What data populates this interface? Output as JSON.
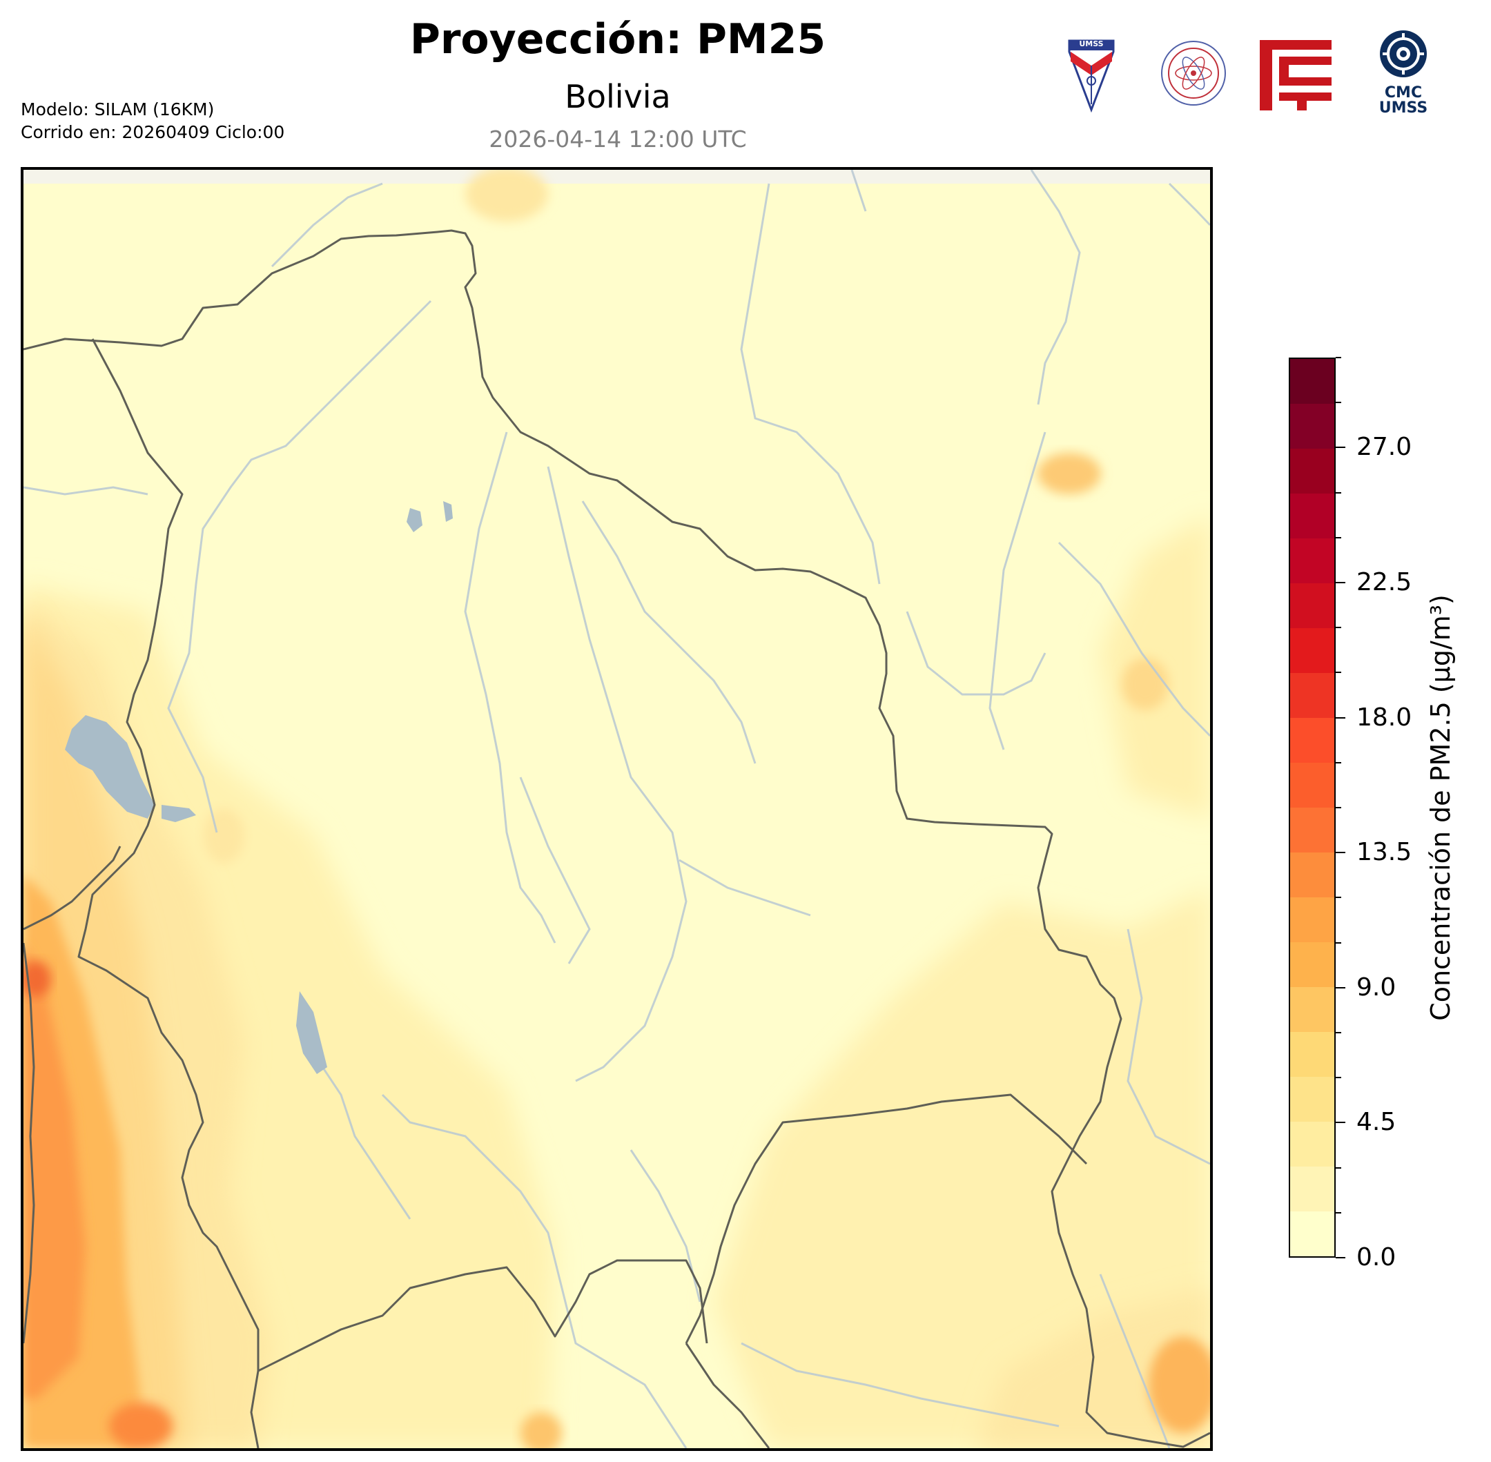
{
  "header": {
    "title": "Proyección: PM25",
    "subtitle": "Bolivia",
    "datetime": "2026-04-14 12:00 UTC"
  },
  "meta": {
    "model": "Modelo: SILAM (16KM)",
    "run": "Corrido en: 20260409 Ciclo:00"
  },
  "logos": [
    {
      "name": "umss-shield-logo",
      "text": "UMSS"
    },
    {
      "name": "departamento-fisica-seal-logo",
      "text": "DEPARTAMENTO DE FÍSICA"
    },
    {
      "name": "red-glyph-logo",
      "text": ""
    },
    {
      "name": "cmc-umss-logo",
      "text": "CMC UMSS"
    }
  ],
  "colorbar": {
    "label": "Concentración de PM2.5 (µg/m³)",
    "min": 0,
    "max": 30,
    "step": 1.5,
    "ticks": [
      {
        "value": 0,
        "label": "0.0"
      },
      {
        "value": 4.5,
        "label": "4.5"
      },
      {
        "value": 9,
        "label": "9.0"
      },
      {
        "value": 13.5,
        "label": "13.5"
      },
      {
        "value": 18,
        "label": "18.0"
      },
      {
        "value": 22.5,
        "label": "22.5"
      },
      {
        "value": 27,
        "label": "27.0"
      }
    ],
    "colors": [
      "#ffffcc",
      "#fff4b6",
      "#ffeda0",
      "#fee38a",
      "#fed976",
      "#fec662",
      "#feb24c",
      "#fea445",
      "#fd8d3c",
      "#fd7234",
      "#fc5e2c",
      "#fc4e2a",
      "#ee3424",
      "#e31a1c",
      "#d10f1f",
      "#c20525",
      "#b10026",
      "#99001f",
      "#830026",
      "#6b0020"
    ]
  },
  "map": {
    "region": "Bolivia",
    "colors": {
      "background": "#fffdcc",
      "border": "#5f5f56",
      "river": "#b8c8d2",
      "lake": "#a9bcc8"
    }
  }
}
